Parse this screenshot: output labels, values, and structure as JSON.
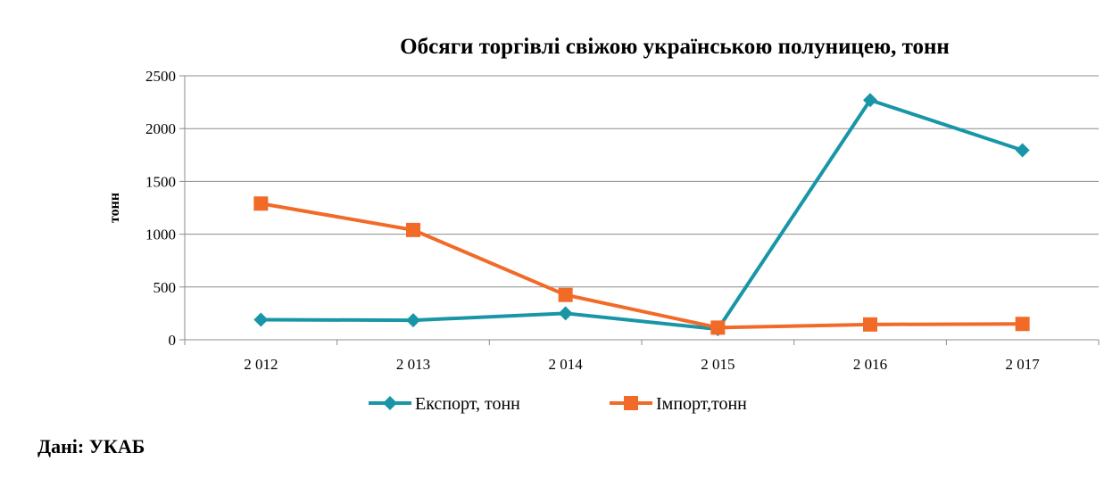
{
  "chart_data": {
    "type": "line",
    "title": "Обсяги торгівлі свіжою українською полуницею, тонн",
    "xlabel": "",
    "ylabel": "тонн",
    "categories": [
      "2 012",
      "2 013",
      "2 014",
      "2 015",
      "2 016",
      "2 017"
    ],
    "y_ticks": [
      "0",
      "500",
      "1000",
      "1500",
      "2000",
      "2500"
    ],
    "ylim": [
      0,
      2500
    ],
    "grid": true,
    "legend_position": "bottom",
    "series": [
      {
        "name": "Експорт, тонн",
        "values": [
          190,
          185,
          250,
          100,
          2270,
          1795
        ],
        "color": "#1896A7",
        "marker": "diamond"
      },
      {
        "name": "Імпорт,тонн",
        "values": [
          1290,
          1040,
          425,
          115,
          145,
          150
        ],
        "color": "#F26A28",
        "marker": "square"
      }
    ]
  },
  "source": "Дані: УКАБ"
}
